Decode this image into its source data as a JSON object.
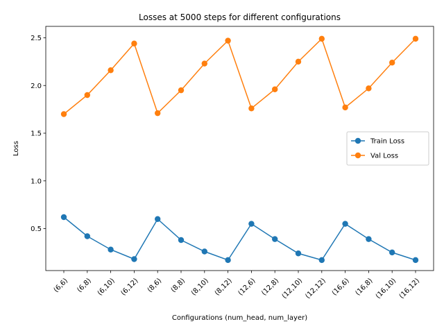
{
  "chart_data": {
    "type": "line",
    "title": "Losses at 5000 steps for different configurations",
    "xlabel": "Configurations (num_head, num_layer)",
    "ylabel": "Loss",
    "categories": [
      "(6,6)",
      "(6,8)",
      "(6,10)",
      "(6,12)",
      "(8,6)",
      "(8,8)",
      "(8,10)",
      "(8,12)",
      "(12,6)",
      "(12,8)",
      "(12,10)",
      "(12,12)",
      "(16,6)",
      "(16,8)",
      "(16,10)",
      "(16,12)"
    ],
    "yticks": [
      "0.5",
      "1.0",
      "1.5",
      "2.0",
      "2.5"
    ],
    "ylim": [
      0.06,
      2.62
    ],
    "grid": false,
    "legend_position": "center-right",
    "series": [
      {
        "name": "Train Loss",
        "color": "#1f77b4",
        "marker": "circle",
        "values": [
          0.62,
          0.42,
          0.28,
          0.18,
          0.6,
          0.38,
          0.26,
          0.17,
          0.55,
          0.39,
          0.24,
          0.17,
          0.55,
          0.39,
          0.25,
          0.17
        ]
      },
      {
        "name": "Val Loss",
        "color": "#ff7f0e",
        "marker": "circle",
        "values": [
          1.7,
          1.9,
          2.16,
          2.44,
          1.71,
          1.95,
          2.23,
          2.47,
          1.76,
          1.96,
          2.25,
          2.49,
          1.77,
          1.97,
          2.24,
          2.49
        ]
      }
    ]
  }
}
